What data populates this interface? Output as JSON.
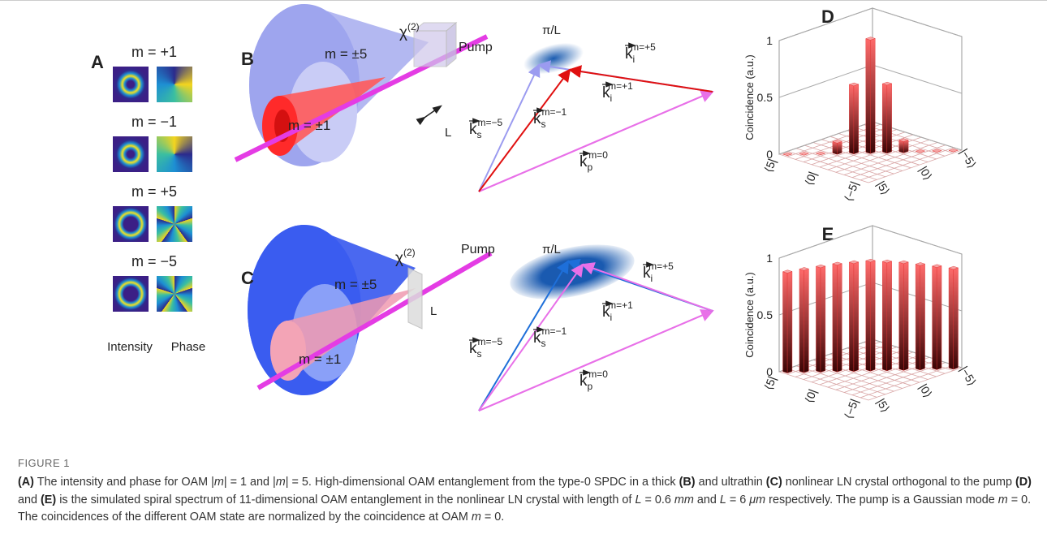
{
  "panel_a": {
    "label": "A",
    "modes": [
      "m = +1",
      "m = −1",
      "m = +5",
      "m = −5"
    ],
    "intensity_label": "Intensity",
    "phase_label": "Phase"
  },
  "panel_b": {
    "label": "B",
    "outer": "m = ±5",
    "inner": "m = ±1",
    "crystal": {
      "base": "χ",
      "sup": "(2)"
    },
    "pump": "Pump",
    "length": "L",
    "bandwidth": "π/L",
    "vectors": [
      {
        "base": "k",
        "sub": "s",
        "sup": "m=−5"
      },
      {
        "base": "k",
        "sub": "s",
        "sup": "m=−1"
      },
      {
        "base": "k",
        "sub": "i",
        "sup": "m=+5"
      },
      {
        "base": "k",
        "sub": "i",
        "sup": "m=+1"
      },
      {
        "base": "k",
        "sub": "p",
        "sup": "m=0"
      }
    ]
  },
  "panel_c": {
    "label": "C",
    "outer": "m = ±5",
    "inner": "m = ±1",
    "crystal": {
      "base": "χ",
      "sup": "(2)"
    },
    "pump": "Pump",
    "length": "L",
    "bandwidth": "π/L",
    "vectors": [
      {
        "base": "k",
        "sub": "s",
        "sup": "m=−5"
      },
      {
        "base": "k",
        "sub": "s",
        "sup": "m=−1"
      },
      {
        "base": "k",
        "sub": "i",
        "sup": "m=+5"
      },
      {
        "base": "k",
        "sub": "i",
        "sup": "m=+1"
      },
      {
        "base": "k",
        "sub": "p",
        "sup": "m=0"
      }
    ]
  },
  "chart_data": [
    {
      "type": "bar3d",
      "label": "D",
      "ylabel": "Coincidence (a.u.)",
      "color": "#e03030",
      "categories": [
        "|5⟩",
        null,
        null,
        null,
        null,
        "|0⟩",
        null,
        null,
        null,
        null,
        "|−5⟩"
      ],
      "row_labels": [
        "⟨5|",
        null,
        null,
        null,
        null,
        "⟨0|",
        null,
        null,
        null,
        null,
        "⟨−5|"
      ],
      "values": [
        0,
        0,
        0,
        0.1,
        0.6,
        1,
        0.6,
        0.1,
        0,
        0,
        0
      ],
      "ylim": [
        0,
        1
      ],
      "yticks": [
        0,
        0.5,
        1
      ],
      "grid": true
    },
    {
      "type": "bar3d",
      "label": "E",
      "ylabel": "Coincidence (a.u.)",
      "color": "#e03030",
      "categories": [
        "|5⟩",
        null,
        null,
        null,
        null,
        "|0⟩",
        null,
        null,
        null,
        null,
        "|−5⟩"
      ],
      "row_labels": [
        "⟨5|",
        null,
        null,
        null,
        null,
        "⟨0|",
        null,
        null,
        null,
        null,
        "⟨−5|"
      ],
      "values": [
        0.88,
        0.9,
        0.92,
        0.94,
        0.95,
        0.96,
        0.95,
        0.94,
        0.92,
        0.9,
        0.88
      ],
      "ylim": [
        0,
        1
      ],
      "yticks": [
        0,
        0.5,
        1
      ],
      "grid": true
    }
  ],
  "caption": {
    "title": "FIGURE 1",
    "segments": [
      {
        "b": "(A)"
      },
      {
        "t": " The intensity and phase for OAM |"
      },
      {
        "i": "m"
      },
      {
        "t": "| = 1 and |"
      },
      {
        "i": "m"
      },
      {
        "t": "| = 5. High-dimensional OAM entanglement from the type-0 SPDC in a thick "
      },
      {
        "b": "(B)"
      },
      {
        "t": " and ultrathin "
      },
      {
        "b": "(C)"
      },
      {
        "t": " nonlinear LN crystal orthogonal to the pump "
      },
      {
        "b": "(D)"
      },
      {
        "t": " and "
      },
      {
        "b": "(E)"
      },
      {
        "t": " is the simulated spiral spectrum of 11-dimensional OAM entanglement in the nonlinear LN crystal with length of "
      },
      {
        "i": "L"
      },
      {
        "t": " = 0.6 "
      },
      {
        "i": "mm"
      },
      {
        "t": " and "
      },
      {
        "i": "L"
      },
      {
        "t": " = 6 "
      },
      {
        "i": "μm"
      },
      {
        "t": " respectively. The pump is a Gaussian mode "
      },
      {
        "i": "m"
      },
      {
        "t": " = 0. The coincidences of the different OAM state are normalized by the coincidence at OAM "
      },
      {
        "i": "m"
      },
      {
        "t": " = 0."
      }
    ]
  }
}
